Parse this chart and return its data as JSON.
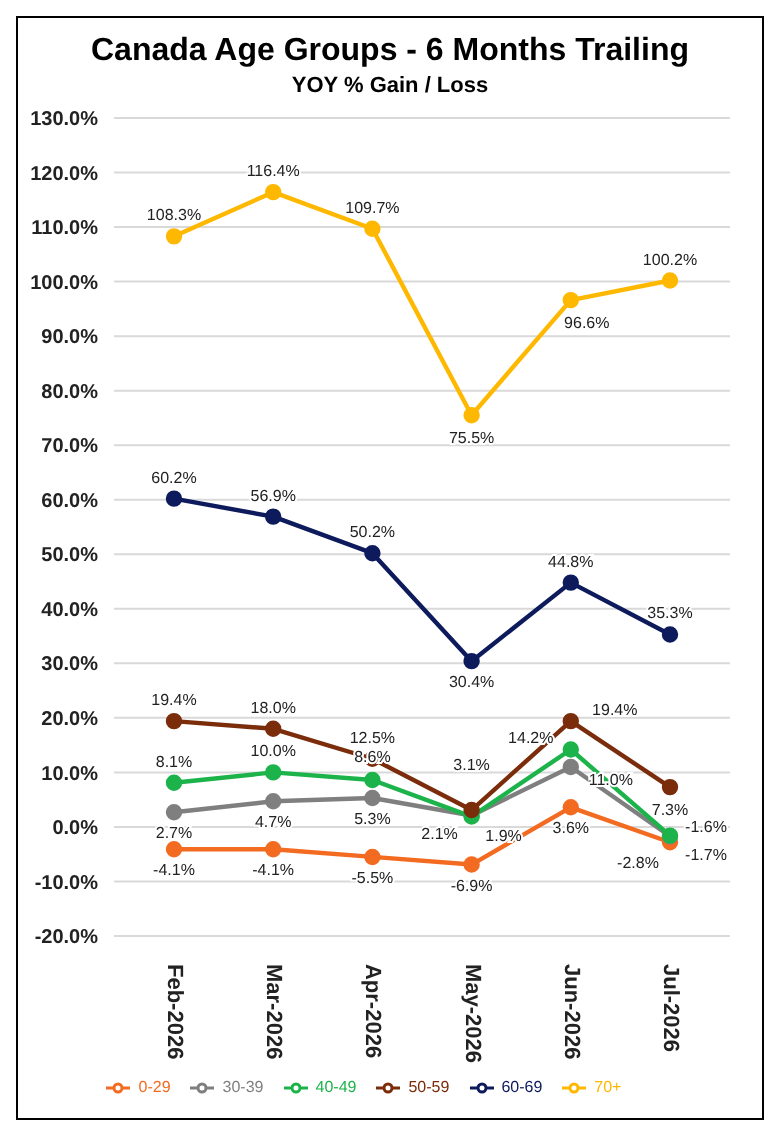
{
  "chart_data": {
    "type": "line",
    "title": "Canada Age Groups - 6 Months Trailing",
    "subtitle": "YOY % Gain / Loss",
    "categories": [
      "Feb-2026",
      "Mar-2026",
      "Apr-2026",
      "May-2026",
      "Jun-2026",
      "Jul-2026"
    ],
    "series": [
      {
        "name": "0-29",
        "color": "#f26b21",
        "values": [
          -4.1,
          -4.1,
          -5.5,
          -6.9,
          3.6,
          -2.8
        ],
        "value_labels": [
          "-4.1%",
          "-4.1%",
          "-5.5%",
          "-6.9%",
          "3.6%",
          "-2.8%"
        ]
      },
      {
        "name": "30-39",
        "color": "#7f7f7f",
        "values": [
          2.7,
          4.7,
          5.3,
          2.1,
          11.0,
          -1.7
        ],
        "value_labels": [
          "2.7%",
          "4.7%",
          "5.3%",
          "2.1%",
          "11.0%",
          "-1.7%"
        ]
      },
      {
        "name": "40-49",
        "color": "#1db34b",
        "values": [
          8.1,
          10.0,
          8.6,
          1.9,
          14.2,
          -1.6
        ],
        "value_labels": [
          "8.1%",
          "10.0%",
          "8.6%",
          "1.9%",
          "14.2%",
          "-1.6%"
        ]
      },
      {
        "name": "50-59",
        "color": "#7b2c0a",
        "values": [
          19.4,
          18.0,
          12.5,
          3.1,
          19.4,
          7.3
        ],
        "value_labels": [
          "19.4%",
          "18.0%",
          "12.5%",
          "3.1%",
          "19.4%",
          "7.3%"
        ]
      },
      {
        "name": "60-69",
        "color": "#0d1b5c",
        "values": [
          60.2,
          56.9,
          50.2,
          30.4,
          44.8,
          35.3
        ],
        "value_labels": [
          "60.2%",
          "56.9%",
          "50.2%",
          "30.4%",
          "44.8%",
          "35.3%"
        ]
      },
      {
        "name": "70+",
        "color": "#ffb800",
        "values": [
          108.3,
          116.4,
          109.7,
          75.5,
          96.6,
          100.2
        ],
        "value_labels": [
          "108.3%",
          "116.4%",
          "109.7%",
          "75.5%",
          "96.6%",
          "100.2%"
        ]
      }
    ],
    "ylim": [
      -20,
      130
    ],
    "yticks": [
      {
        "value": -20,
        "label": "-20.0%"
      },
      {
        "value": -10,
        "label": "-10.0%"
      },
      {
        "value": 0,
        "label": "0.0%"
      },
      {
        "value": 10,
        "label": "10.0%"
      },
      {
        "value": 20,
        "label": "20.0%"
      },
      {
        "value": 30,
        "label": "30.0%"
      },
      {
        "value": 40,
        "label": "40.0%"
      },
      {
        "value": 50,
        "label": "50.0%"
      },
      {
        "value": 60,
        "label": "60.0%"
      },
      {
        "value": 70,
        "label": "70.0%"
      },
      {
        "value": 80,
        "label": "80.0%"
      },
      {
        "value": 90,
        "label": "90.0%"
      },
      {
        "value": 100,
        "label": "100.0%"
      },
      {
        "value": 110,
        "label": "110.0%"
      },
      {
        "value": 120,
        "label": "120.0%"
      },
      {
        "value": 130,
        "label": "130.0%"
      }
    ],
    "grid": "y",
    "legend": "bottom",
    "marker": "circle",
    "line_style": "solid"
  }
}
